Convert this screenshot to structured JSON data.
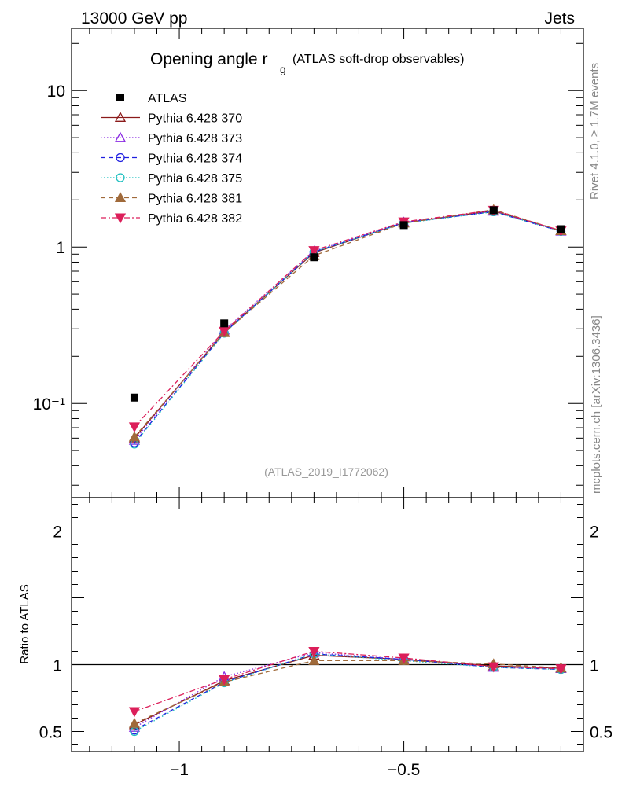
{
  "header": {
    "left": "13000 GeV pp",
    "right": "Jets"
  },
  "side": {
    "rivet": "Rivet 4.1.0, ≥ 1.7M events",
    "mcplots": "mcplots.cern.ch [arXiv:1306.3436]"
  },
  "chart_data": {
    "type": "line",
    "title_main": "Opening angle r",
    "title_sub": "g",
    "title_rest": "(ATLAS soft-drop observables)",
    "analysis_label": "(ATLAS_2019_I1772062)",
    "ratio_ylabel": "Ratio to ATLAS",
    "xlim": [
      -1.24,
      -0.1
    ],
    "ylim_main": [
      0.025,
      25
    ],
    "ylim_ratio": [
      0.35,
      2.25
    ],
    "x_ticks": [
      {
        "v": -1,
        "label": "−1"
      },
      {
        "v": -0.5,
        "label": "−0.5"
      }
    ],
    "y_ticks_main": [
      {
        "v": 0.1,
        "label": "10⁻¹"
      },
      {
        "v": 1,
        "label": "1"
      },
      {
        "v": 10,
        "label": "10"
      }
    ],
    "y_ticks_ratio": [
      {
        "v": 0.5,
        "label": "0.5"
      },
      {
        "v": 1,
        "label": "1"
      },
      {
        "v": 2,
        "label": "2"
      }
    ],
    "x": [
      -1.1,
      -0.9,
      -0.7,
      -0.5,
      -0.3,
      -0.15
    ],
    "data": {
      "name": "ATLAS",
      "values": [
        0.109,
        0.325,
        0.86,
        1.38,
        1.72,
        1.3
      ]
    },
    "series": [
      {
        "name": "Pythia 6.428 370",
        "color": "#8b1a1a",
        "dash": "",
        "marker": "triangle-up-open",
        "values": [
          0.06,
          0.285,
          0.92,
          1.43,
          1.7,
          1.27
        ],
        "ratio": [
          0.55,
          0.88,
          1.07,
          1.04,
          0.99,
          0.975
        ]
      },
      {
        "name": "Pythia 6.428 373",
        "color": "#8a2be2",
        "dash": "1.5,2.5",
        "marker": "triangle-up-open",
        "values": [
          0.058,
          0.294,
          0.94,
          1.44,
          1.69,
          1.26
        ],
        "ratio": [
          0.53,
          0.91,
          1.09,
          1.04,
          0.98,
          0.97
        ]
      },
      {
        "name": "Pythia 6.428 374",
        "color": "#1f1fe0",
        "dash": "6,4",
        "marker": "circle-open",
        "values": [
          0.056,
          0.283,
          0.93,
          1.43,
          1.68,
          1.26
        ],
        "ratio": [
          0.51,
          0.87,
          1.08,
          1.04,
          0.98,
          0.965
        ]
      },
      {
        "name": "Pythia 6.428 375",
        "color": "#20c0c0",
        "dash": "1.5,2.5",
        "marker": "circle-open",
        "values": [
          0.055,
          0.281,
          0.93,
          1.42,
          1.68,
          1.26
        ],
        "ratio": [
          0.5,
          0.865,
          1.08,
          1.03,
          0.98,
          0.965
        ]
      },
      {
        "name": "Pythia 6.428 381",
        "color": "#a06a3a",
        "dash": "6,4",
        "marker": "triangle-up-filled",
        "values": [
          0.061,
          0.283,
          0.88,
          1.42,
          1.73,
          1.27
        ],
        "ratio": [
          0.56,
          0.87,
          1.03,
          1.03,
          1.005,
          0.975
        ]
      },
      {
        "name": "Pythia 6.428 382",
        "color": "#dc1f5a",
        "dash": "7,3,2,3",
        "marker": "triangle-down-filled",
        "values": [
          0.071,
          0.29,
          0.95,
          1.45,
          1.72,
          1.27
        ],
        "ratio": [
          0.65,
          0.89,
          1.1,
          1.05,
          0.985,
          0.97
        ]
      }
    ]
  }
}
